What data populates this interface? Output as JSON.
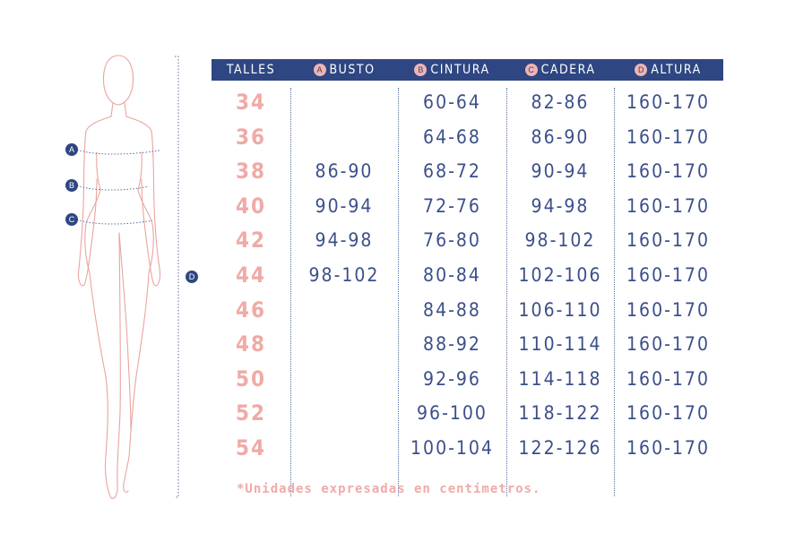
{
  "markers": {
    "bust": "A",
    "waist": "B",
    "hip": "C",
    "height": "D"
  },
  "table": {
    "headers": [
      {
        "badge": "",
        "label": "TALLES"
      },
      {
        "badge": "A",
        "label": "BUSTO"
      },
      {
        "badge": "B",
        "label": "CINTURA"
      },
      {
        "badge": "C",
        "label": "CADERA"
      },
      {
        "badge": "D",
        "label": "ALTURA"
      }
    ],
    "rows": [
      {
        "talle": "34",
        "busto": "",
        "cintura": "60-64",
        "cadera": "82-86",
        "altura": "160-170"
      },
      {
        "talle": "36",
        "busto": "",
        "cintura": "64-68",
        "cadera": "86-90",
        "altura": "160-170"
      },
      {
        "talle": "38",
        "busto": "86-90",
        "cintura": "68-72",
        "cadera": "90-94",
        "altura": "160-170"
      },
      {
        "talle": "40",
        "busto": "90-94",
        "cintura": "72-76",
        "cadera": "94-98",
        "altura": "160-170"
      },
      {
        "talle": "42",
        "busto": "94-98",
        "cintura": "76-80",
        "cadera": "98-102",
        "altura": "160-170"
      },
      {
        "talle": "44",
        "busto": "98-102",
        "cintura": "80-84",
        "cadera": "102-106",
        "altura": "160-170"
      },
      {
        "talle": "46",
        "busto": "",
        "cintura": "84-88",
        "cadera": "106-110",
        "altura": "160-170"
      },
      {
        "talle": "48",
        "busto": "",
        "cintura": "88-92",
        "cadera": "110-114",
        "altura": "160-170"
      },
      {
        "talle": "50",
        "busto": "",
        "cintura": "92-96",
        "cadera": "114-118",
        "altura": "160-170"
      },
      {
        "talle": "52",
        "busto": "",
        "cintura": "96-100",
        "cadera": "118-122",
        "altura": "160-170"
      },
      {
        "talle": "54",
        "busto": "",
        "cintura": "100-104",
        "cadera": "122-126",
        "altura": "160-170"
      }
    ]
  },
  "footnote": "*Unidades expresadas en centímetros.",
  "colors": {
    "navy": "#2e4682",
    "pink": "#f0aaa6",
    "text_blue": "#3c4f8a"
  }
}
